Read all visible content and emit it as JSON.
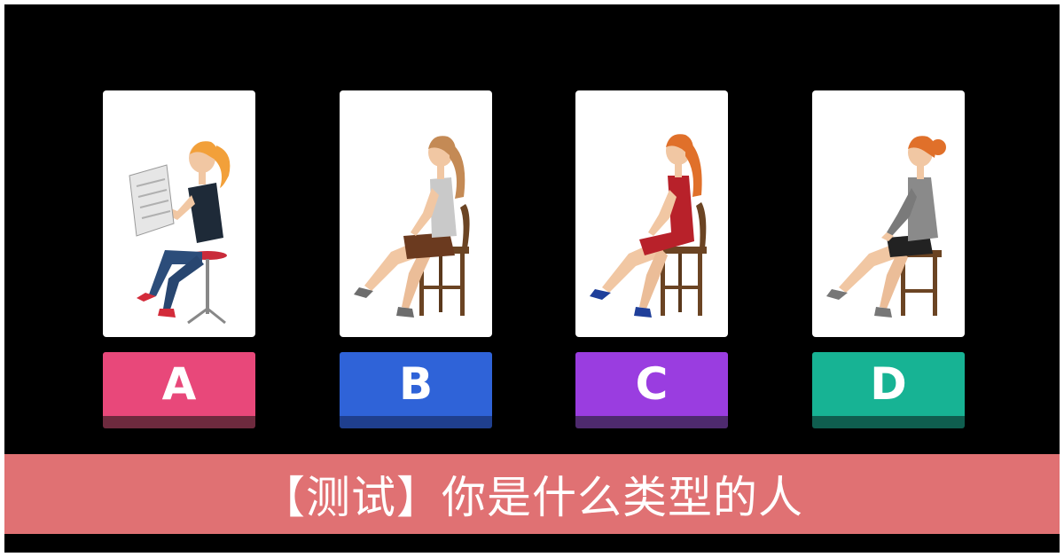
{
  "options": [
    {
      "letter": "A",
      "color": "#e8487a",
      "shade": "#6e2a3e"
    },
    {
      "letter": "B",
      "color": "#2f63d8",
      "shade": "#1f3f8e"
    },
    {
      "letter": "C",
      "color": "#9a3de0",
      "shade": "#4e2a6e"
    },
    {
      "letter": "D",
      "color": "#17b394",
      "shade": "#0f5e4f"
    }
  ],
  "figures": [
    {
      "id": "A",
      "hair": "#f2a03a",
      "top": "#1e2a38",
      "bottom": "#2c4d7a",
      "shoes": "#d32b3a",
      "seat": "stool-red-newspaper"
    },
    {
      "id": "B",
      "hair": "#c48a55",
      "top": "#c9c9c9",
      "bottom": "#6b3a1f",
      "shoes": "#6d6d6d",
      "seat": "chair-wood"
    },
    {
      "id": "C",
      "hair": "#e0702a",
      "top": "#b8212a",
      "bottom": "#b8212a",
      "shoes": "#1f3f9a",
      "seat": "chair-wood"
    },
    {
      "id": "D",
      "hair": "#e0702a",
      "top": "#8a8a8a",
      "bottom": "#222222",
      "shoes": "#777777",
      "seat": "stool-wood"
    }
  ],
  "banner": {
    "title": "【测试】你是什么类型的人",
    "color": "#e07173"
  }
}
